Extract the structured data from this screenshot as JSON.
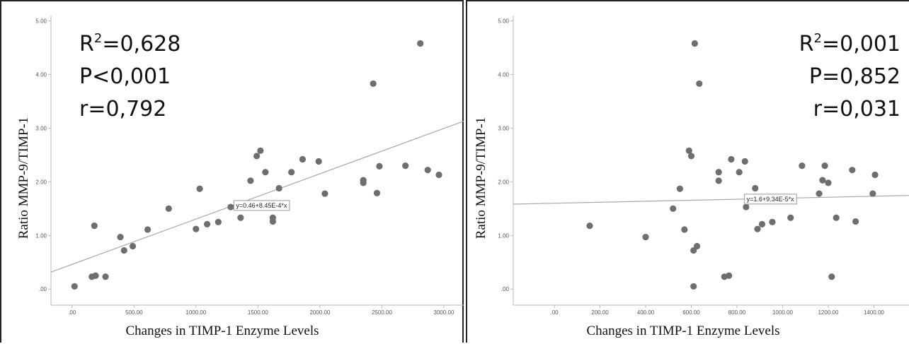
{
  "chart_data": [
    {
      "type": "scatter",
      "xlabel": "Changes in TIMP-1 Enzyme Levels",
      "ylabel": "Ratio MMP-9/TIMP-1",
      "xlim": [
        -170,
        3160
      ],
      "ylim": [
        -0.3,
        5.1
      ],
      "x_ticks": [
        0,
        500,
        1000,
        1500,
        2000,
        2500,
        3000
      ],
      "x_tick_labels": [
        ".00",
        "500.00",
        "1000.00",
        "1500.00",
        "2000.00",
        "2500.00",
        "3000.00"
      ],
      "y_ticks": [
        0,
        1,
        2,
        3,
        4,
        5
      ],
      "y_tick_labels": [
        ".00",
        "1.00",
        "2.00",
        "3.00",
        "4.00",
        "5.00"
      ],
      "stats": [
        "R²=0,628",
        "P<0,001",
        "r=0,792"
      ],
      "fit_line": {
        "label": "y=0.46+8.45E-4*x",
        "intercept": 0.46,
        "slope": 0.000845,
        "label_x": 1300
      },
      "points": [
        [
          20,
          0.05
        ],
        [
          160,
          0.23
        ],
        [
          180,
          1.18
        ],
        [
          190,
          0.25
        ],
        [
          270,
          0.23
        ],
        [
          390,
          0.97
        ],
        [
          420,
          0.72
        ],
        [
          490,
          0.8
        ],
        [
          610,
          1.11
        ],
        [
          780,
          1.5
        ],
        [
          1000,
          1.12
        ],
        [
          1030,
          1.87
        ],
        [
          1090,
          1.21
        ],
        [
          1180,
          1.25
        ],
        [
          1280,
          1.53
        ],
        [
          1360,
          1.33
        ],
        [
          1440,
          2.02
        ],
        [
          1490,
          2.48
        ],
        [
          1520,
          2.58
        ],
        [
          1560,
          2.18
        ],
        [
          1620,
          1.33
        ],
        [
          1620,
          1.26
        ],
        [
          1670,
          1.88
        ],
        [
          1770,
          2.18
        ],
        [
          1860,
          2.42
        ],
        [
          1990,
          2.38
        ],
        [
          2040,
          1.78
        ],
        [
          2350,
          2.03
        ],
        [
          2350,
          1.98
        ],
        [
          2430,
          3.83
        ],
        [
          2460,
          1.79
        ],
        [
          2480,
          2.29
        ],
        [
          2690,
          2.3
        ],
        [
          2810,
          4.58
        ],
        [
          2870,
          2.22
        ],
        [
          2960,
          2.13
        ]
      ]
    },
    {
      "type": "scatter",
      "xlabel": "Changes in TIMP-1 Enzyme Levels",
      "ylabel": "Ratio MMP-9/TIMP-1",
      "xlim": [
        -180,
        1560
      ],
      "ylim": [
        -0.3,
        5.1
      ],
      "x_ticks": [
        0,
        200,
        400,
        600,
        800,
        1000,
        1200,
        1400
      ],
      "x_tick_labels": [
        ".00",
        "200.00",
        "400.00",
        "600.00",
        "800.00",
        "1000.00",
        "1200.00",
        "1400.00"
      ],
      "y_ticks": [
        0,
        1,
        2,
        3,
        4,
        5
      ],
      "y_tick_labels": [
        ".00",
        "1.00",
        "2.00",
        "3.00",
        "4.00",
        "5.00"
      ],
      "stats": [
        "R²=0,001",
        "P=0,852",
        "r=0,031"
      ],
      "fit_line": {
        "label": "y=1.6+9.34E-5*x",
        "intercept": 1.6,
        "slope": 9.34e-05,
        "label_x": 830
      },
      "points": [
        [
          155,
          1.18
        ],
        [
          400,
          0.97
        ],
        [
          520,
          1.5
        ],
        [
          550,
          1.87
        ],
        [
          570,
          1.11
        ],
        [
          590,
          2.58
        ],
        [
          600,
          2.48
        ],
        [
          610,
          0.72
        ],
        [
          610,
          0.05
        ],
        [
          615,
          4.58
        ],
        [
          625,
          0.8
        ],
        [
          635,
          3.83
        ],
        [
          720,
          2.18
        ],
        [
          720,
          2.02
        ],
        [
          745,
          0.23
        ],
        [
          765,
          0.25
        ],
        [
          775,
          2.42
        ],
        [
          810,
          2.18
        ],
        [
          835,
          2.38
        ],
        [
          840,
          1.53
        ],
        [
          880,
          1.88
        ],
        [
          890,
          1.12
        ],
        [
          910,
          1.21
        ],
        [
          955,
          1.25
        ],
        [
          1035,
          1.33
        ],
        [
          1085,
          2.3
        ],
        [
          1160,
          1.78
        ],
        [
          1175,
          2.03
        ],
        [
          1185,
          2.3
        ],
        [
          1200,
          1.98
        ],
        [
          1215,
          0.23
        ],
        [
          1235,
          1.33
        ],
        [
          1305,
          2.22
        ],
        [
          1320,
          1.26
        ],
        [
          1395,
          1.78
        ],
        [
          1405,
          2.13
        ]
      ]
    }
  ]
}
